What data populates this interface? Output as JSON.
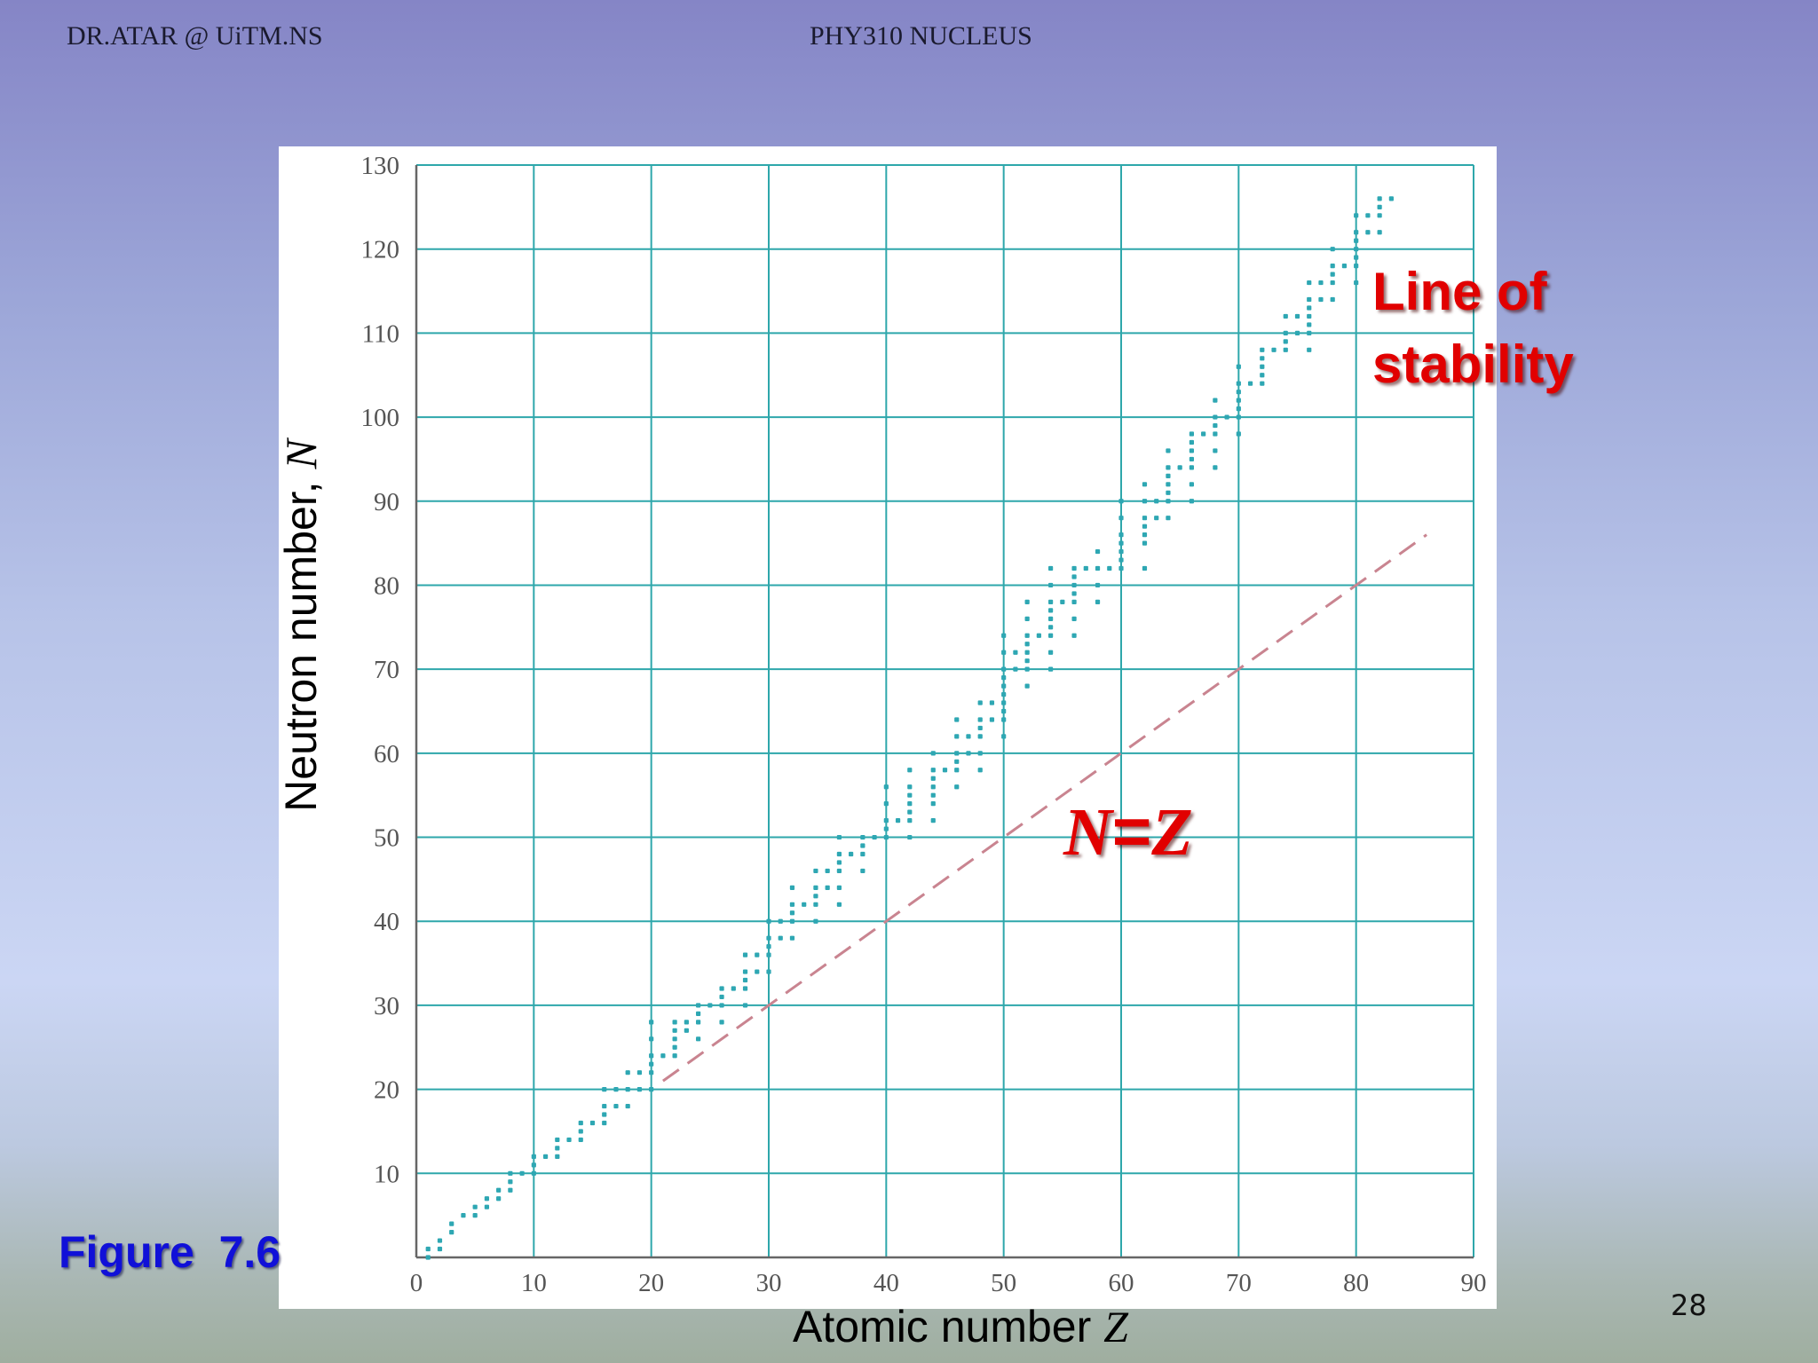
{
  "slide": {
    "header_left": "DR.ATAR @ UiTM.NS",
    "header_center": "PHY310 NUCLEUS",
    "page_number": "28",
    "figure_label": "Figure  7.6",
    "annotations": {
      "line_of_stability_1": "Line of",
      "line_of_stability_2": "stability",
      "nz_N": "N",
      "nz_eq": "=",
      "nz_Z": "Z"
    },
    "colors": {
      "points": "#2ea7b3",
      "grid": "#2ea7ab",
      "diagonal": "#c98490",
      "annotation": "#e10000",
      "figure_label": "#1010d8"
    }
  },
  "chart_data": {
    "type": "scatter",
    "xlabel_text": "Atomic number ",
    "xlabel_var": "Z",
    "ylabel_text": "Neutron number, ",
    "ylabel_var": "N",
    "xlim": [
      0,
      90
    ],
    "ylim": [
      0,
      130
    ],
    "xticks": [
      0,
      10,
      20,
      30,
      40,
      50,
      60,
      70,
      80,
      90
    ],
    "yticks": [
      10,
      20,
      30,
      40,
      50,
      60,
      70,
      80,
      90,
      100,
      110,
      120,
      130
    ],
    "grid": true,
    "reference_line": {
      "label": "N=Z",
      "x": [
        21,
        86
      ],
      "y": [
        21,
        86
      ],
      "style": "dashed"
    },
    "stable_nuclides": [
      [
        1,
        0
      ],
      [
        1,
        1
      ],
      [
        2,
        1
      ],
      [
        2,
        2
      ],
      [
        3,
        3
      ],
      [
        3,
        4
      ],
      [
        4,
        5
      ],
      [
        5,
        5
      ],
      [
        5,
        6
      ],
      [
        6,
        6
      ],
      [
        6,
        7
      ],
      [
        7,
        7
      ],
      [
        7,
        8
      ],
      [
        8,
        8
      ],
      [
        8,
        9
      ],
      [
        8,
        10
      ],
      [
        9,
        10
      ],
      [
        10,
        10
      ],
      [
        10,
        11
      ],
      [
        10,
        12
      ],
      [
        11,
        12
      ],
      [
        12,
        12
      ],
      [
        12,
        13
      ],
      [
        12,
        14
      ],
      [
        13,
        14
      ],
      [
        14,
        14
      ],
      [
        14,
        15
      ],
      [
        14,
        16
      ],
      [
        15,
        16
      ],
      [
        16,
        16
      ],
      [
        16,
        17
      ],
      [
        16,
        18
      ],
      [
        16,
        20
      ],
      [
        17,
        18
      ],
      [
        17,
        20
      ],
      [
        18,
        18
      ],
      [
        18,
        20
      ],
      [
        18,
        22
      ],
      [
        19,
        20
      ],
      [
        19,
        22
      ],
      [
        20,
        20
      ],
      [
        20,
        22
      ],
      [
        20,
        23
      ],
      [
        20,
        24
      ],
      [
        20,
        26
      ],
      [
        20,
        28
      ],
      [
        21,
        24
      ],
      [
        22,
        24
      ],
      [
        22,
        25
      ],
      [
        22,
        26
      ],
      [
        22,
        27
      ],
      [
        22,
        28
      ],
      [
        23,
        27
      ],
      [
        23,
        28
      ],
      [
        24,
        26
      ],
      [
        24,
        28
      ],
      [
        24,
        29
      ],
      [
        24,
        30
      ],
      [
        25,
        30
      ],
      [
        26,
        28
      ],
      [
        26,
        30
      ],
      [
        26,
        31
      ],
      [
        26,
        32
      ],
      [
        27,
        32
      ],
      [
        28,
        30
      ],
      [
        28,
        32
      ],
      [
        28,
        33
      ],
      [
        28,
        34
      ],
      [
        28,
        36
      ],
      [
        29,
        34
      ],
      [
        29,
        36
      ],
      [
        30,
        34
      ],
      [
        30,
        36
      ],
      [
        30,
        37
      ],
      [
        30,
        38
      ],
      [
        30,
        40
      ],
      [
        31,
        38
      ],
      [
        31,
        40
      ],
      [
        32,
        38
      ],
      [
        32,
        40
      ],
      [
        32,
        41
      ],
      [
        32,
        42
      ],
      [
        32,
        44
      ],
      [
        33,
        42
      ],
      [
        34,
        40
      ],
      [
        34,
        42
      ],
      [
        34,
        43
      ],
      [
        34,
        44
      ],
      [
        34,
        46
      ],
      [
        35,
        44
      ],
      [
        35,
        46
      ],
      [
        36,
        42
      ],
      [
        36,
        44
      ],
      [
        36,
        46
      ],
      [
        36,
        47
      ],
      [
        36,
        48
      ],
      [
        36,
        50
      ],
      [
        37,
        48
      ],
      [
        38,
        46
      ],
      [
        38,
        48
      ],
      [
        38,
        49
      ],
      [
        38,
        50
      ],
      [
        39,
        50
      ],
      [
        40,
        50
      ],
      [
        40,
        51
      ],
      [
        40,
        52
      ],
      [
        40,
        54
      ],
      [
        40,
        56
      ],
      [
        41,
        52
      ],
      [
        42,
        50
      ],
      [
        42,
        52
      ],
      [
        42,
        53
      ],
      [
        42,
        54
      ],
      [
        42,
        55
      ],
      [
        42,
        56
      ],
      [
        42,
        58
      ],
      [
        44,
        52
      ],
      [
        44,
        54
      ],
      [
        44,
        55
      ],
      [
        44,
        56
      ],
      [
        44,
        57
      ],
      [
        44,
        58
      ],
      [
        44,
        60
      ],
      [
        45,
        58
      ],
      [
        46,
        56
      ],
      [
        46,
        58
      ],
      [
        46,
        59
      ],
      [
        46,
        60
      ],
      [
        46,
        62
      ],
      [
        46,
        64
      ],
      [
        47,
        60
      ],
      [
        47,
        62
      ],
      [
        48,
        58
      ],
      [
        48,
        60
      ],
      [
        48,
        62
      ],
      [
        48,
        63
      ],
      [
        48,
        64
      ],
      [
        48,
        66
      ],
      [
        49,
        64
      ],
      [
        49,
        66
      ],
      [
        50,
        62
      ],
      [
        50,
        64
      ],
      [
        50,
        65
      ],
      [
        50,
        66
      ],
      [
        50,
        67
      ],
      [
        50,
        68
      ],
      [
        50,
        69
      ],
      [
        50,
        70
      ],
      [
        50,
        72
      ],
      [
        50,
        74
      ],
      [
        51,
        70
      ],
      [
        51,
        72
      ],
      [
        52,
        68
      ],
      [
        52,
        70
      ],
      [
        52,
        71
      ],
      [
        52,
        72
      ],
      [
        52,
        73
      ],
      [
        52,
        74
      ],
      [
        52,
        76
      ],
      [
        52,
        78
      ],
      [
        53,
        74
      ],
      [
        54,
        70
      ],
      [
        54,
        72
      ],
      [
        54,
        74
      ],
      [
        54,
        75
      ],
      [
        54,
        76
      ],
      [
        54,
        77
      ],
      [
        54,
        78
      ],
      [
        54,
        80
      ],
      [
        54,
        82
      ],
      [
        55,
        78
      ],
      [
        56,
        74
      ],
      [
        56,
        76
      ],
      [
        56,
        78
      ],
      [
        56,
        79
      ],
      [
        56,
        80
      ],
      [
        56,
        81
      ],
      [
        56,
        82
      ],
      [
        57,
        82
      ],
      [
        58,
        78
      ],
      [
        58,
        80
      ],
      [
        58,
        82
      ],
      [
        58,
        84
      ],
      [
        59,
        82
      ],
      [
        60,
        82
      ],
      [
        60,
        83
      ],
      [
        60,
        84
      ],
      [
        60,
        85
      ],
      [
        60,
        86
      ],
      [
        60,
        88
      ],
      [
        60,
        90
      ],
      [
        62,
        82
      ],
      [
        62,
        85
      ],
      [
        62,
        86
      ],
      [
        62,
        87
      ],
      [
        62,
        88
      ],
      [
        62,
        90
      ],
      [
        62,
        92
      ],
      [
        63,
        88
      ],
      [
        63,
        90
      ],
      [
        64,
        88
      ],
      [
        64,
        90
      ],
      [
        64,
        91
      ],
      [
        64,
        92
      ],
      [
        64,
        93
      ],
      [
        64,
        94
      ],
      [
        64,
        96
      ],
      [
        65,
        94
      ],
      [
        66,
        90
      ],
      [
        66,
        92
      ],
      [
        66,
        94
      ],
      [
        66,
        95
      ],
      [
        66,
        96
      ],
      [
        66,
        97
      ],
      [
        66,
        98
      ],
      [
        67,
        98
      ],
      [
        68,
        94
      ],
      [
        68,
        96
      ],
      [
        68,
        98
      ],
      [
        68,
        99
      ],
      [
        68,
        100
      ],
      [
        68,
        102
      ],
      [
        69,
        100
      ],
      [
        70,
        98
      ],
      [
        70,
        100
      ],
      [
        70,
        101
      ],
      [
        70,
        102
      ],
      [
        70,
        103
      ],
      [
        70,
        104
      ],
      [
        70,
        106
      ],
      [
        71,
        104
      ],
      [
        72,
        104
      ],
      [
        72,
        105
      ],
      [
        72,
        106
      ],
      [
        72,
        107
      ],
      [
        72,
        108
      ],
      [
        73,
        108
      ],
      [
        74,
        108
      ],
      [
        74,
        109
      ],
      [
        74,
        110
      ],
      [
        74,
        112
      ],
      [
        75,
        110
      ],
      [
        75,
        112
      ],
      [
        76,
        108
      ],
      [
        76,
        110
      ],
      [
        76,
        111
      ],
      [
        76,
        112
      ],
      [
        76,
        113
      ],
      [
        76,
        114
      ],
      [
        76,
        116
      ],
      [
        77,
        114
      ],
      [
        77,
        116
      ],
      [
        78,
        114
      ],
      [
        78,
        116
      ],
      [
        78,
        117
      ],
      [
        78,
        118
      ],
      [
        78,
        120
      ],
      [
        79,
        118
      ],
      [
        80,
        116
      ],
      [
        80,
        118
      ],
      [
        80,
        119
      ],
      [
        80,
        120
      ],
      [
        80,
        121
      ],
      [
        80,
        122
      ],
      [
        80,
        124
      ],
      [
        81,
        122
      ],
      [
        81,
        124
      ],
      [
        82,
        122
      ],
      [
        82,
        124
      ],
      [
        82,
        125
      ],
      [
        82,
        126
      ],
      [
        83,
        126
      ]
    ]
  }
}
